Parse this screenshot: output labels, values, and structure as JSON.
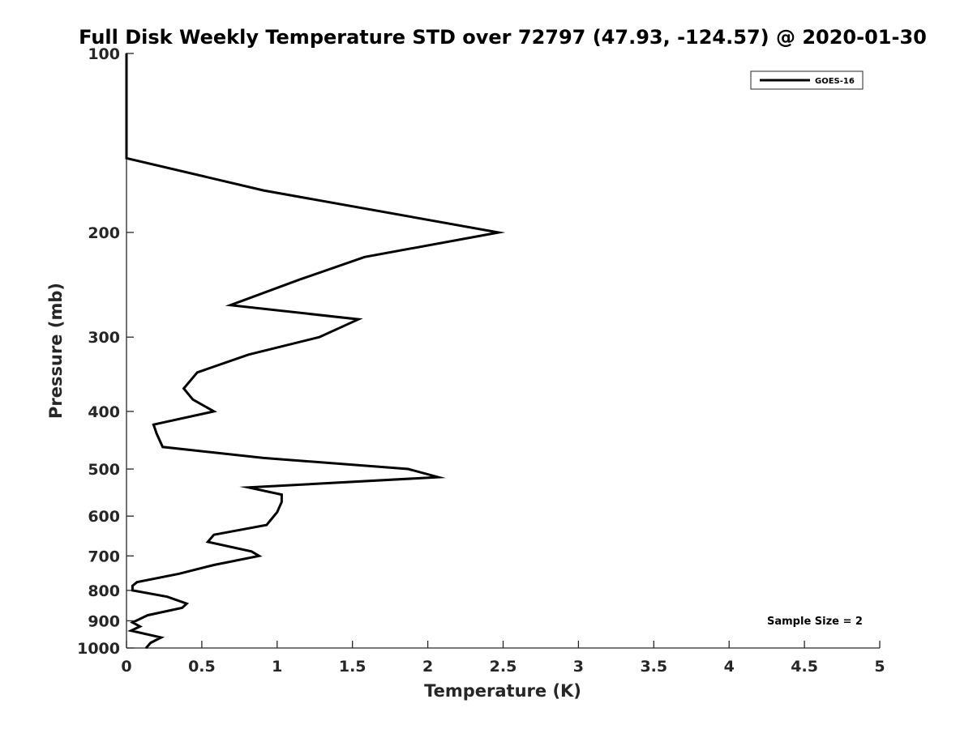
{
  "chart_data": {
    "type": "line",
    "title": "Full Disk Weekly Temperature STD over 72797 (47.93, -124.57) @ 2020-01-30",
    "xlabel": "Temperature (K)",
    "ylabel": "Pressure (mb)",
    "xlim": [
      0,
      5
    ],
    "ylim": [
      100,
      1000
    ],
    "y_scale": "log",
    "y_reversed": true,
    "x_ticks": [
      "0",
      "0.5",
      "1",
      "1.5",
      "2",
      "2.5",
      "3",
      "3.5",
      "4",
      "4.5",
      "5"
    ],
    "y_ticks": [
      "100",
      "200",
      "300",
      "400",
      "500",
      "600",
      "700",
      "800",
      "900",
      "1000"
    ],
    "grid": false,
    "legend_position": "top-right",
    "series": [
      {
        "name": "GOES-16",
        "color": "#000000",
        "points": [
          {
            "x": 0.0,
            "y": 100
          },
          {
            "x": 0.0,
            "y": 150
          },
          {
            "x": 0.91,
            "y": 170
          },
          {
            "x": 2.47,
            "y": 200
          },
          {
            "x": 1.58,
            "y": 220
          },
          {
            "x": 1.15,
            "y": 240
          },
          {
            "x": 0.69,
            "y": 265
          },
          {
            "x": 1.54,
            "y": 280
          },
          {
            "x": 1.28,
            "y": 300
          },
          {
            "x": 0.81,
            "y": 321
          },
          {
            "x": 0.47,
            "y": 344
          },
          {
            "x": 0.38,
            "y": 366
          },
          {
            "x": 0.44,
            "y": 382
          },
          {
            "x": 0.58,
            "y": 400
          },
          {
            "x": 0.18,
            "y": 421
          },
          {
            "x": 0.2,
            "y": 436
          },
          {
            "x": 0.24,
            "y": 459
          },
          {
            "x": 0.91,
            "y": 479
          },
          {
            "x": 1.87,
            "y": 500
          },
          {
            "x": 2.07,
            "y": 516
          },
          {
            "x": 0.81,
            "y": 537
          },
          {
            "x": 1.03,
            "y": 552
          },
          {
            "x": 1.03,
            "y": 568
          },
          {
            "x": 1.0,
            "y": 591
          },
          {
            "x": 0.93,
            "y": 621
          },
          {
            "x": 0.58,
            "y": 645
          },
          {
            "x": 0.54,
            "y": 663
          },
          {
            "x": 0.83,
            "y": 688
          },
          {
            "x": 0.88,
            "y": 700
          },
          {
            "x": 0.58,
            "y": 725
          },
          {
            "x": 0.35,
            "y": 750
          },
          {
            "x": 0.07,
            "y": 775
          },
          {
            "x": 0.04,
            "y": 786
          },
          {
            "x": 0.04,
            "y": 800
          },
          {
            "x": 0.27,
            "y": 820
          },
          {
            "x": 0.4,
            "y": 842
          },
          {
            "x": 0.37,
            "y": 856
          },
          {
            "x": 0.14,
            "y": 881
          },
          {
            "x": 0.04,
            "y": 906
          },
          {
            "x": 0.09,
            "y": 920
          },
          {
            "x": 0.03,
            "y": 935
          },
          {
            "x": 0.23,
            "y": 960
          },
          {
            "x": 0.16,
            "y": 980
          },
          {
            "x": 0.13,
            "y": 1000
          }
        ]
      }
    ],
    "annotation": "Sample Size = 2"
  }
}
